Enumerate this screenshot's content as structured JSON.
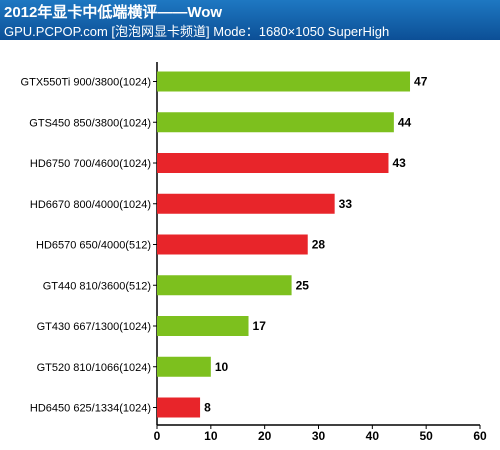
{
  "header": {
    "title": "2012年显卡中低端横评——Wow",
    "subtitle": "GPU.PCPOP.com [泡泡网显卡频道] Mode：1680×1050 SuperHigh"
  },
  "colors": {
    "nvidia": "#7dc01e",
    "amd": "#e8252a"
  },
  "chart_data": {
    "type": "bar",
    "orientation": "horizontal",
    "title": "",
    "xlabel": "",
    "ylabel": "",
    "xlim": [
      0,
      60
    ],
    "xticks": [
      0,
      10,
      20,
      30,
      40,
      50,
      60
    ],
    "grid": false,
    "legend": "none",
    "categories": [
      "GTX550Ti 900/3800(1024)",
      "GTS450 850/3800(1024)",
      "HD6750 700/4600(1024)",
      "HD6670 800/4000(1024)",
      "HD6570 650/4000(512)",
      "GT440 810/3600(512)",
      "GT430 667/1300(1024)",
      "GT520 810/1066(1024)",
      "HD6450 625/1334(1024)"
    ],
    "values": [
      47,
      44,
      43,
      33,
      28,
      25,
      17,
      10,
      8
    ],
    "bar_colors": [
      "#7dc01e",
      "#7dc01e",
      "#e8252a",
      "#e8252a",
      "#e8252a",
      "#7dc01e",
      "#7dc01e",
      "#7dc01e",
      "#e8252a"
    ]
  }
}
